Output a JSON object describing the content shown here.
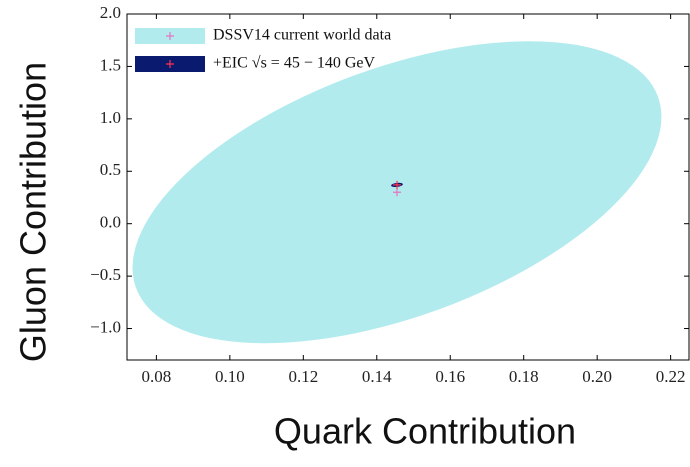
{
  "chart_data": {
    "type": "ellipse",
    "xlabel": "Quark Contribution",
    "ylabel": "Gluon Contribution",
    "xlim": [
      0.072,
      0.225
    ],
    "ylim": [
      -1.3,
      2.0
    ],
    "xticks": [
      0.08,
      {
        "value": 0.1,
        "label": "0.10"
      },
      0.12,
      0.14,
      0.16,
      0.18,
      {
        "value": 0.2,
        "label": "0.20"
      },
      0.22
    ],
    "yticks": [
      {
        "value": -1,
        "label": "−1.0"
      },
      {
        "value": -0.5,
        "label": "−0.5"
      },
      {
        "value": 0,
        "label": "0.0"
      },
      0.5,
      {
        "value": 1,
        "label": "1.0"
      },
      1.5,
      {
        "value": 2,
        "label": "2.0"
      }
    ],
    "legend": "upper left",
    "series": [
      {
        "name": "DSSV14 current world data",
        "color": "#b2ebee",
        "marker_color": "#e377c2",
        "x": 0.1455,
        "y": 0.3,
        "x_halfwidth": 0.072,
        "y_halfwidth": 1.44,
        "correlation": 0.5
      },
      {
        "name": "+EIC √s = 45 − 140 GeV",
        "color": "#0a1a6e",
        "marker_color": "#ff3355",
        "x": 0.1455,
        "y": 0.37,
        "x_halfwidth": 0.0016,
        "y_halfwidth": 0.02,
        "correlation": 0.3
      }
    ]
  }
}
